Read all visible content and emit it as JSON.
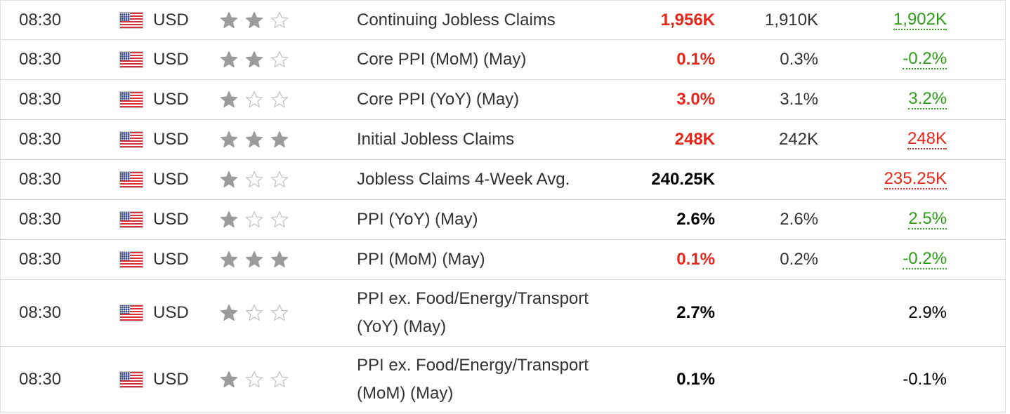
{
  "colors": {
    "negative": "#e5281c",
    "positive": "#2e9e1a",
    "neutral": "#000000"
  },
  "icons": {
    "flag": "us-flag-icon",
    "star_filled": "star-filled-icon",
    "star_empty": "star-empty-icon"
  },
  "rows": [
    {
      "time": "08:30",
      "currency": "USD",
      "importance": 2,
      "event": "Continuing Jobless Claims",
      "actual": "1,956K",
      "actual_status": "neg",
      "forecast": "1,910K",
      "previous": "1,902K",
      "previous_status": "up"
    },
    {
      "time": "08:30",
      "currency": "USD",
      "importance": 2,
      "event": "Core PPI (MoM) (May)",
      "actual": "0.1%",
      "actual_status": "neg",
      "forecast": "0.3%",
      "previous": "-0.2%",
      "previous_status": "up"
    },
    {
      "time": "08:30",
      "currency": "USD",
      "importance": 1,
      "event": "Core PPI (YoY) (May)",
      "actual": "3.0%",
      "actual_status": "neg",
      "forecast": "3.1%",
      "previous": "3.2%",
      "previous_status": "up"
    },
    {
      "time": "08:30",
      "currency": "USD",
      "importance": 3,
      "event": "Initial Jobless Claims",
      "actual": "248K",
      "actual_status": "neg",
      "forecast": "242K",
      "previous": "248K",
      "previous_status": "down"
    },
    {
      "time": "08:30",
      "currency": "USD",
      "importance": 1,
      "event": "Jobless Claims 4-Week Avg.",
      "actual": "240.25K",
      "actual_status": "neutral",
      "forecast": "",
      "previous": "235.25K",
      "previous_status": "down"
    },
    {
      "time": "08:30",
      "currency": "USD",
      "importance": 1,
      "event": "PPI (YoY) (May)",
      "actual": "2.6%",
      "actual_status": "neutral",
      "forecast": "2.6%",
      "previous": "2.5%",
      "previous_status": "up"
    },
    {
      "time": "08:30",
      "currency": "USD",
      "importance": 3,
      "event": "PPI (MoM) (May)",
      "actual": "0.1%",
      "actual_status": "neg",
      "forecast": "0.2%",
      "previous": "-0.2%",
      "previous_status": "up"
    },
    {
      "time": "08:30",
      "currency": "USD",
      "importance": 1,
      "event": "PPI ex. Food/Energy/Transport (YoY) (May)",
      "actual": "2.7%",
      "actual_status": "neutral",
      "forecast": "",
      "previous": "2.9%",
      "previous_status": "plain"
    },
    {
      "time": "08:30",
      "currency": "USD",
      "importance": 1,
      "event": "PPI ex. Food/Energy/Transport (MoM) (May)",
      "actual": "0.1%",
      "actual_status": "neutral",
      "forecast": "",
      "previous": "-0.1%",
      "previous_status": "plain"
    }
  ]
}
